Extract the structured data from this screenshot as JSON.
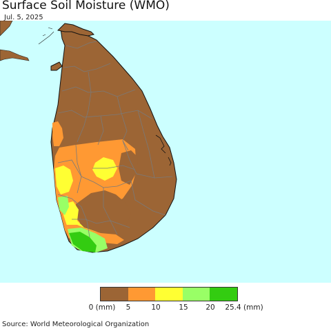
{
  "header": {
    "title": "Surface Soil Moisture (WMO)",
    "date": "Jul. 5, 2025"
  },
  "colors": {
    "ocean": "#ccffff",
    "land_dry": "#9c6535",
    "land_low": "#ff9933",
    "land_mid": "#ffff33",
    "land_high": "#99ff66",
    "land_wet": "#33cc11",
    "border": "#7a7a7a"
  },
  "legend": {
    "colors": [
      "#9c6535",
      "#ff9933",
      "#ffff33",
      "#99ff66",
      "#33cc11"
    ],
    "ticks": [
      "0 (mm)",
      "5",
      "10",
      "15",
      "20",
      "25.4 (mm)"
    ]
  },
  "footer": {
    "source": "Source: World Meteorological Organization"
  }
}
